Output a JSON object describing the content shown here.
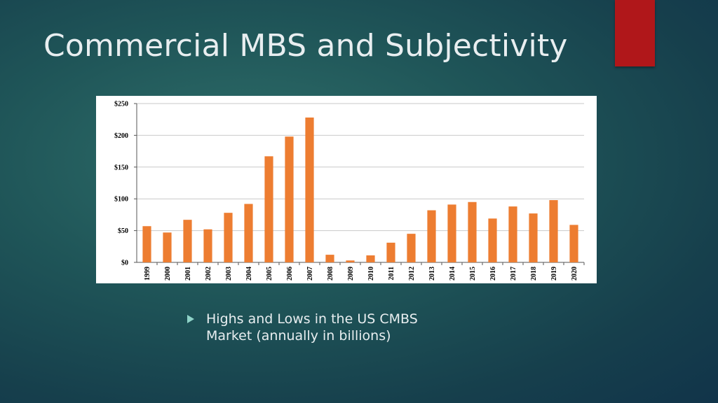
{
  "slide": {
    "title": "Commercial MBS and Subjectivity",
    "bullet": "Highs and Lows in the US CMBS Market (annually in billions)",
    "accent_color": "#b0171a"
  },
  "chart_data": {
    "type": "bar",
    "categories": [
      "1999",
      "2000",
      "2001",
      "2002",
      "2003",
      "2004",
      "2005",
      "2006",
      "2007",
      "2008",
      "2009",
      "2010",
      "2011",
      "2012",
      "2013",
      "2014",
      "2015",
      "2016",
      "2017",
      "2018",
      "2019",
      "2020"
    ],
    "values": [
      57,
      47,
      67,
      52,
      78,
      92,
      167,
      198,
      228,
      12,
      3,
      11,
      31,
      45,
      82,
      91,
      95,
      69,
      88,
      77,
      98,
      59
    ],
    "title": "",
    "xlabel": "",
    "ylabel": "",
    "ylim": [
      0,
      250
    ],
    "yticks": [
      0,
      50,
      100,
      150,
      200,
      250
    ],
    "ytick_labels": [
      "$0",
      "$50",
      "$100",
      "$150",
      "$200",
      "$250"
    ],
    "grid": true,
    "bar_color": "#ed7d31"
  }
}
